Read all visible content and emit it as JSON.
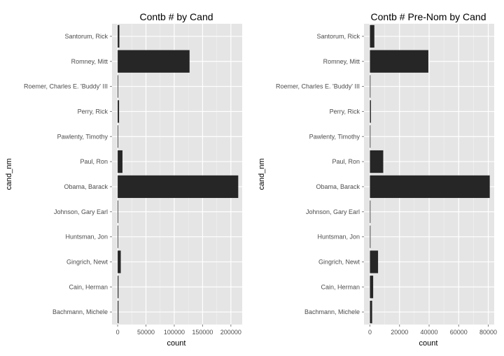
{
  "chart_data": [
    {
      "type": "bar",
      "orientation": "horizontal",
      "title": "Contb # by Cand",
      "xlabel": "count",
      "ylabel": "cand_nm",
      "xlim": [
        -10000,
        220000
      ],
      "xticks": [
        0,
        50000,
        100000,
        150000,
        200000
      ],
      "xtick_labels": [
        "0",
        "50000",
        "100000",
        "150000",
        "200000"
      ],
      "grid": true,
      "categories": [
        "Santorum, Rick",
        "Romney, Mitt",
        "Roemer, Charles E. 'Buddy' III",
        "Perry, Rick",
        "Pawlenty, Timothy",
        "Paul, Ron",
        "Obama, Barack",
        "Johnson, Gary Earl",
        "Huntsman, Jon",
        "Gingrich, Newt",
        "Cain, Herman",
        "Bachmann, Michele"
      ],
      "values": [
        3000,
        127000,
        200,
        2500,
        100,
        8500,
        213000,
        300,
        400,
        5500,
        1500,
        1500
      ]
    },
    {
      "type": "bar",
      "orientation": "horizontal",
      "title": "Contb # Pre-Nom by Cand",
      "xlabel": "count",
      "ylabel": "cand_nm",
      "xlim": [
        -4000,
        84000
      ],
      "xticks": [
        0,
        20000,
        40000,
        60000,
        80000
      ],
      "xtick_labels": [
        "0",
        "20000",
        "40000",
        "60000",
        "80000"
      ],
      "grid": true,
      "categories": [
        "Santorum, Rick",
        "Romney, Mitt",
        "Roemer, Charles E. 'Buddy' III",
        "Perry, Rick",
        "Pawlenty, Timothy",
        "Paul, Ron",
        "Obama, Barack",
        "Johnson, Gary Earl",
        "Huntsman, Jon",
        "Gingrich, Newt",
        "Cain, Herman",
        "Bachmann, Michele"
      ],
      "values": [
        3000,
        39500,
        200,
        700,
        100,
        9000,
        81000,
        300,
        400,
        5500,
        2200,
        1500
      ]
    }
  ],
  "colors": {
    "panel_bg": "#e5e5e5",
    "grid_major": "#ffffff",
    "grid_minor": "#f2f2f2",
    "bar": "#262626",
    "tick_text": "#4d4d4d"
  }
}
